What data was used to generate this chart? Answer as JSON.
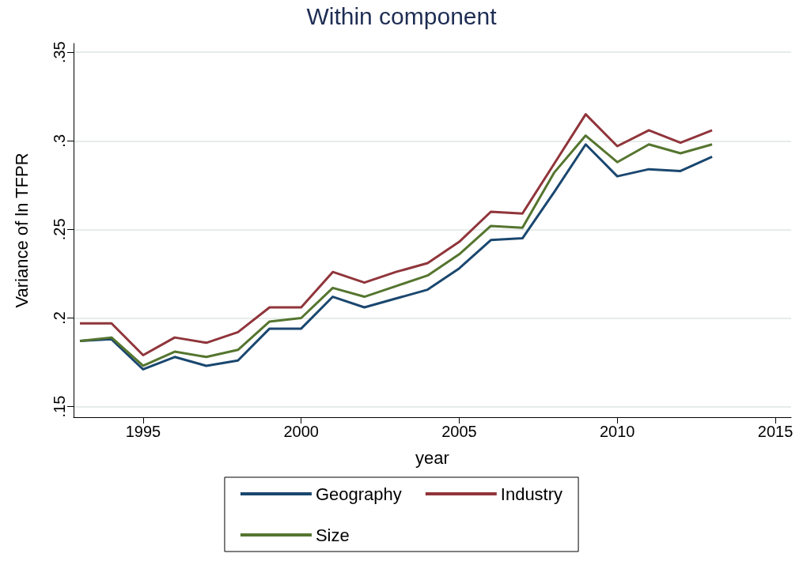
{
  "chart_data": {
    "type": "line",
    "title": "Within component",
    "xlabel": "year",
    "ylabel": "Variance of ln TFPR",
    "x": [
      1993,
      1994,
      1995,
      1996,
      1997,
      1998,
      1999,
      2000,
      2001,
      2002,
      2003,
      2004,
      2005,
      2006,
      2007,
      2008,
      2009,
      2010,
      2011,
      2012,
      2013
    ],
    "series": [
      {
        "name": "Geography",
        "color": "#1a476f",
        "values": [
          0.187,
          0.188,
          0.171,
          0.178,
          0.173,
          0.176,
          0.194,
          0.194,
          0.212,
          0.206,
          0.211,
          0.216,
          0.228,
          0.244,
          0.245,
          0.271,
          0.298,
          0.28,
          0.284,
          0.283,
          0.291
        ]
      },
      {
        "name": "Industry",
        "color": "#90353b",
        "values": [
          0.197,
          0.197,
          0.179,
          0.189,
          0.186,
          0.192,
          0.206,
          0.206,
          0.226,
          0.22,
          0.226,
          0.231,
          0.243,
          0.26,
          0.259,
          0.287,
          0.315,
          0.297,
          0.306,
          0.299,
          0.306
        ]
      },
      {
        "name": "Size",
        "color": "#55752f",
        "values": [
          0.187,
          0.189,
          0.173,
          0.181,
          0.178,
          0.182,
          0.198,
          0.2,
          0.217,
          0.212,
          0.218,
          0.224,
          0.236,
          0.252,
          0.251,
          0.282,
          0.303,
          0.288,
          0.298,
          0.293,
          0.298
        ]
      }
    ],
    "xlim": [
      1992.8,
      2015.5
    ],
    "xticks": [
      1995,
      2000,
      2005,
      2010,
      2015
    ],
    "ylim": [
      0.144,
      0.355
    ],
    "yticks": [
      {
        "value": 0.15,
        "label": ".15"
      },
      {
        "value": 0.2,
        "label": ".2"
      },
      {
        "value": 0.25,
        "label": ".25"
      },
      {
        "value": 0.3,
        "label": ".3"
      },
      {
        "value": 0.35,
        "label": ".35"
      }
    ],
    "grid": "y",
    "legend": "bottom",
    "marker": "none",
    "line_style": "solid"
  }
}
